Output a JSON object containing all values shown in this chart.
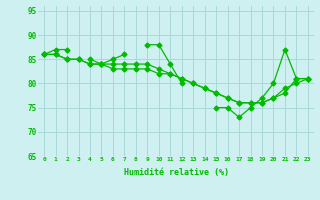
{
  "x": [
    0,
    1,
    2,
    3,
    4,
    5,
    6,
    7,
    8,
    9,
    10,
    11,
    12,
    13,
    14,
    15,
    16,
    17,
    18,
    19,
    20,
    21,
    22,
    23
  ],
  "line1": [
    86,
    87,
    87,
    null,
    85,
    84,
    85,
    86,
    null,
    88,
    88,
    84,
    80,
    null,
    null,
    75,
    75,
    73,
    75,
    77,
    80,
    87,
    81,
    81
  ],
  "line2": [
    86,
    86,
    85,
    85,
    84,
    84,
    84,
    84,
    84,
    84,
    83,
    82,
    81,
    80,
    79,
    78,
    77,
    76,
    76,
    76,
    77,
    79,
    80,
    81
  ],
  "line3": [
    86,
    86,
    85,
    85,
    84,
    84,
    83,
    83,
    83,
    83,
    82,
    82,
    81,
    80,
    79,
    78,
    77,
    76,
    76,
    76,
    77,
    78,
    81,
    81
  ],
  "bg_color": "#cff0f0",
  "grid_color": "#a8d8d8",
  "line_color": "#00bb00",
  "xlabel": "Humidité relative (%)",
  "ylim": [
    65,
    96
  ],
  "xlim": [
    -0.5,
    23.5
  ],
  "yticks": [
    65,
    70,
    75,
    80,
    85,
    90,
    95
  ],
  "xtick_labels": [
    "0",
    "1",
    "2",
    "3",
    "4",
    "5",
    "6",
    "7",
    "8",
    "9",
    "10",
    "11",
    "12",
    "13",
    "14",
    "15",
    "16",
    "17",
    "18",
    "19",
    "20",
    "21",
    "22",
    "23"
  ]
}
